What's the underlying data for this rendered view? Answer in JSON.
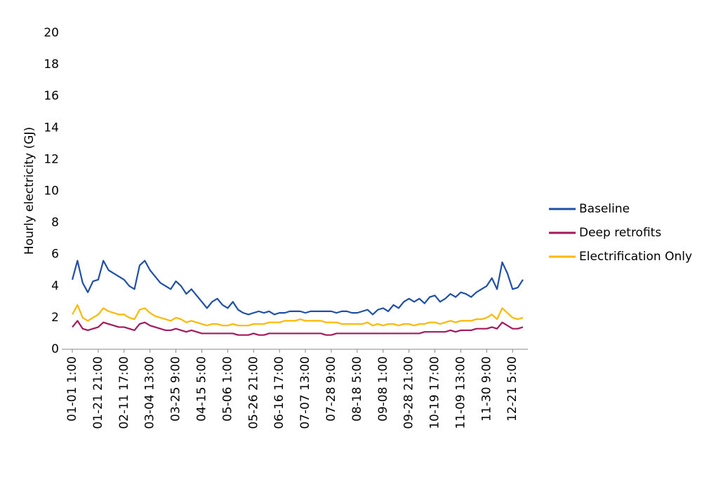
{
  "chart_data": {
    "type": "line",
    "y_label": "Hourly electricity (GJ)",
    "categories": [
      "01-01 1:00",
      null,
      null,
      null,
      null,
      "01-21 21:00",
      null,
      null,
      null,
      null,
      "02-11 17:00",
      null,
      null,
      null,
      null,
      "03-04 13:00",
      null,
      null,
      null,
      null,
      "03-25 9:00",
      null,
      null,
      null,
      null,
      "04-15 5:00",
      null,
      null,
      null,
      null,
      "05-06 1:00",
      null,
      null,
      null,
      null,
      "05-26 21:00",
      null,
      null,
      null,
      null,
      "06-16 17:00",
      null,
      null,
      null,
      null,
      "07-07 13:00",
      null,
      null,
      null,
      null,
      "07-28 9:00",
      null,
      null,
      null,
      null,
      "08-18 5:00",
      null,
      null,
      null,
      null,
      "09-08 1:00",
      null,
      null,
      null,
      null,
      "09-28 21:00",
      null,
      null,
      null,
      null,
      "10-19 17:00",
      null,
      null,
      null,
      null,
      "11-09 13:00",
      null,
      null,
      null,
      null,
      "11-30 9:00",
      null,
      null,
      null,
      null,
      "12-21 5:00",
      null,
      null
    ],
    "series": [
      {
        "name": "Baseline",
        "color": "#1f4fa8",
        "values": [
          4.4,
          5.6,
          4.2,
          3.6,
          4.3,
          4.4,
          5.6,
          5.0,
          4.8,
          4.6,
          4.4,
          4.0,
          3.8,
          5.3,
          5.6,
          5.0,
          4.6,
          4.2,
          4.0,
          3.8,
          4.3,
          4.0,
          3.5,
          3.8,
          3.4,
          3.0,
          2.6,
          3.0,
          3.2,
          2.8,
          2.6,
          3.0,
          2.5,
          2.3,
          2.2,
          2.3,
          2.4,
          2.3,
          2.4,
          2.2,
          2.3,
          2.3,
          2.4,
          2.4,
          2.4,
          2.3,
          2.4,
          2.4,
          2.4,
          2.4,
          2.4,
          2.3,
          2.4,
          2.4,
          2.3,
          2.3,
          2.4,
          2.5,
          2.2,
          2.5,
          2.6,
          2.4,
          2.8,
          2.6,
          3.0,
          3.2,
          3.0,
          3.2,
          2.9,
          3.3,
          3.4,
          3.0,
          3.2,
          3.5,
          3.3,
          3.6,
          3.5,
          3.3,
          3.6,
          3.8,
          4.0,
          4.5,
          3.8,
          5.5,
          4.8,
          3.8,
          3.9,
          4.4
        ]
      },
      {
        "name": "Deep retrofits",
        "color": "#a3195b",
        "values": [
          1.4,
          1.8,
          1.3,
          1.2,
          1.3,
          1.4,
          1.7,
          1.6,
          1.5,
          1.4,
          1.4,
          1.3,
          1.2,
          1.6,
          1.7,
          1.5,
          1.4,
          1.3,
          1.2,
          1.2,
          1.3,
          1.2,
          1.1,
          1.2,
          1.1,
          1.0,
          1.0,
          1.0,
          1.0,
          1.0,
          1.0,
          1.0,
          0.9,
          0.9,
          0.9,
          1.0,
          0.9,
          0.9,
          1.0,
          1.0,
          1.0,
          1.0,
          1.0,
          1.0,
          1.0,
          1.0,
          1.0,
          1.0,
          1.0,
          0.9,
          0.9,
          1.0,
          1.0,
          1.0,
          1.0,
          1.0,
          1.0,
          1.0,
          1.0,
          1.0,
          1.0,
          1.0,
          1.0,
          1.0,
          1.0,
          1.0,
          1.0,
          1.0,
          1.1,
          1.1,
          1.1,
          1.1,
          1.1,
          1.2,
          1.1,
          1.2,
          1.2,
          1.2,
          1.3,
          1.3,
          1.3,
          1.4,
          1.3,
          1.7,
          1.5,
          1.3,
          1.3,
          1.4
        ]
      },
      {
        "name": "Electrification Only",
        "color": "#ffb800",
        "values": [
          2.2,
          2.8,
          2.0,
          1.8,
          2.0,
          2.2,
          2.6,
          2.4,
          2.3,
          2.2,
          2.2,
          2.0,
          1.9,
          2.5,
          2.6,
          2.3,
          2.1,
          2.0,
          1.9,
          1.8,
          2.0,
          1.9,
          1.7,
          1.8,
          1.7,
          1.6,
          1.5,
          1.6,
          1.6,
          1.5,
          1.5,
          1.6,
          1.5,
          1.5,
          1.5,
          1.6,
          1.6,
          1.6,
          1.7,
          1.7,
          1.7,
          1.8,
          1.8,
          1.8,
          1.9,
          1.8,
          1.8,
          1.8,
          1.8,
          1.7,
          1.7,
          1.7,
          1.6,
          1.6,
          1.6,
          1.6,
          1.6,
          1.7,
          1.5,
          1.6,
          1.5,
          1.6,
          1.6,
          1.5,
          1.6,
          1.6,
          1.5,
          1.6,
          1.6,
          1.7,
          1.7,
          1.6,
          1.7,
          1.8,
          1.7,
          1.8,
          1.8,
          1.8,
          1.9,
          1.9,
          2.0,
          2.2,
          1.9,
          2.6,
          2.3,
          2.0,
          1.9,
          2.0
        ]
      }
    ],
    "ylim": [
      0,
      20
    ],
    "yticks": [
      0,
      2,
      4,
      6,
      8,
      10,
      12,
      14,
      16,
      18,
      20
    ],
    "grid": false,
    "legend": "right"
  }
}
